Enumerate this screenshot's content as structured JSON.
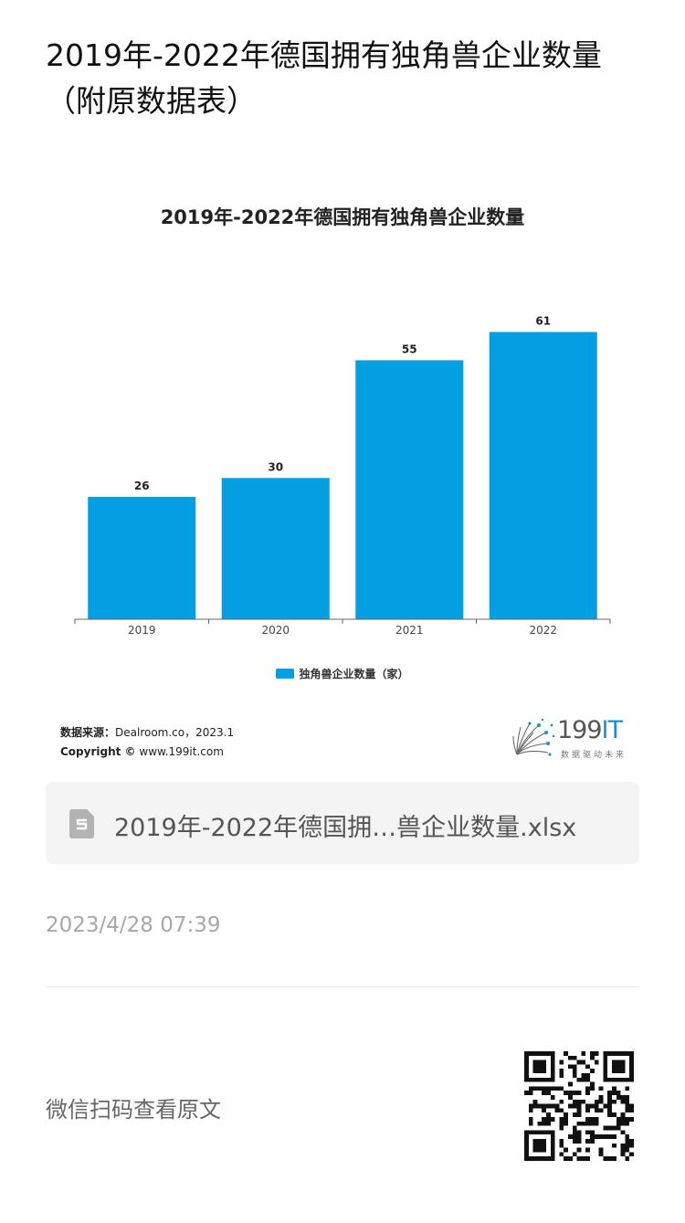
{
  "page": {
    "title": "2019年-2022年德国拥有独角兽企业数量（附原数据表）"
  },
  "chart_data": {
    "type": "bar",
    "title": "2019年-2022年德国拥有独角兽企业数量",
    "categories": [
      "2019",
      "2020",
      "2021",
      "2022"
    ],
    "series": [
      {
        "name": "独角兽企业数量（家）",
        "values": [
          26,
          30,
          55,
          61
        ],
        "color": "#049fe2"
      }
    ],
    "ylim": [
      0,
      64
    ],
    "data_labels": true,
    "grid": false,
    "legend_position": "bottom"
  },
  "source": {
    "label": "数据来源：",
    "value": "Dealroom.co，2023.1",
    "copyright_label": "Copyright ©",
    "copyright_value": "www.199it.com"
  },
  "logo": {
    "number": "199",
    "suffix": "IT",
    "tagline": "数据驱动未来"
  },
  "attachment": {
    "icon": "spreadsheet-file-icon",
    "file_name": "2019年-2022年德国拥…兽企业数量.xlsx"
  },
  "meta": {
    "timestamp": "2023/4/28 07:39"
  },
  "footer": {
    "wechat_label": "微信扫码查看原文",
    "qr_icon": "qr-code-icon"
  },
  "colors": {
    "bar": "#049fe2",
    "text": "#222222",
    "muted": "#a8a8a8"
  }
}
